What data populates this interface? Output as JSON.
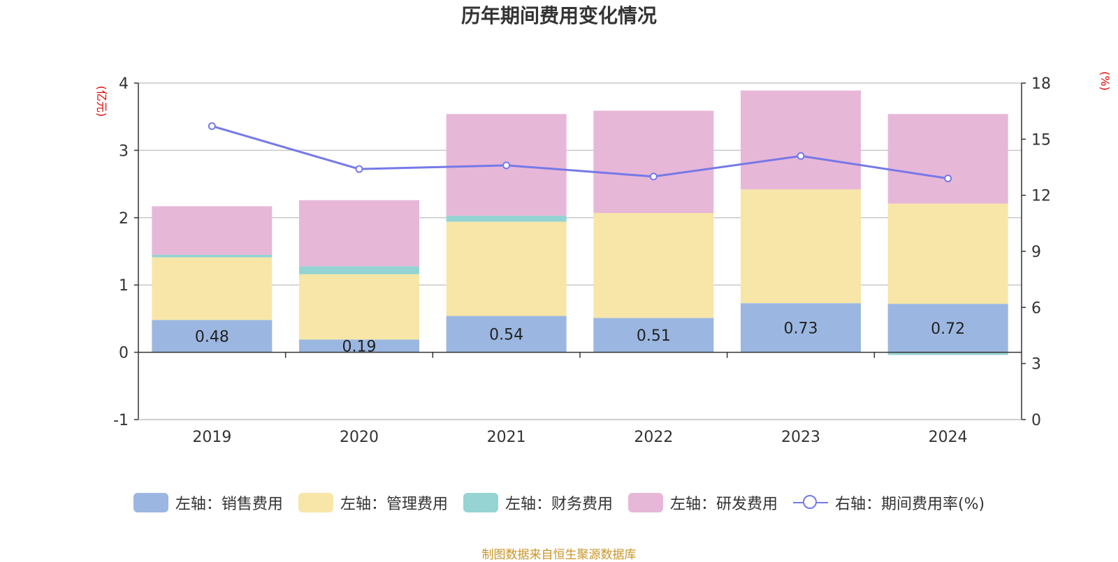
{
  "chart_data": {
    "type": "bar",
    "title": "历年期间费用变化情况",
    "y_left_unit": "(亿元)",
    "y_right_unit": "(%)",
    "categories": [
      "2019",
      "2020",
      "2021",
      "2022",
      "2023",
      "2024"
    ],
    "y_left": {
      "min": -1,
      "max": 4,
      "ticks": [
        "-1",
        "0",
        "1",
        "2",
        "3",
        "4"
      ]
    },
    "y_right": {
      "min": 0,
      "max": 18,
      "ticks": [
        "0",
        "3",
        "6",
        "9",
        "12",
        "15",
        "18"
      ]
    },
    "grid": true,
    "stacked": true,
    "series": [
      {
        "name": "左轴：销售费用",
        "axis": "left",
        "type": "bar",
        "color": "#9bb7e1",
        "values": [
          0.48,
          0.19,
          0.54,
          0.51,
          0.73,
          0.72
        ],
        "labels": [
          "0.48",
          "0.19",
          "0.54",
          "0.51",
          "0.73",
          "0.72"
        ]
      },
      {
        "name": "左轴：管理费用",
        "axis": "left",
        "type": "bar",
        "color": "#f7e6a8",
        "values": [
          0.93,
          0.97,
          1.4,
          1.56,
          1.69,
          1.49
        ]
      },
      {
        "name": "左轴：财务费用",
        "axis": "left",
        "type": "bar",
        "color": "#96d3d3",
        "values": [
          0.04,
          0.12,
          0.09,
          0.0,
          0.0,
          -0.04
        ]
      },
      {
        "name": "左轴：研发费用",
        "axis": "left",
        "type": "bar",
        "color": "#e7b7d8",
        "values": [
          0.72,
          0.98,
          1.51,
          1.52,
          1.47,
          1.33
        ]
      },
      {
        "name": "右轴：期间费用率(%)",
        "axis": "right",
        "type": "line",
        "color": "#7579e7",
        "values": [
          15.7,
          13.4,
          13.6,
          13.0,
          14.1,
          12.9
        ]
      }
    ],
    "legend_position": "bottom"
  },
  "source_note": "制图数据来自恒生聚源数据库"
}
